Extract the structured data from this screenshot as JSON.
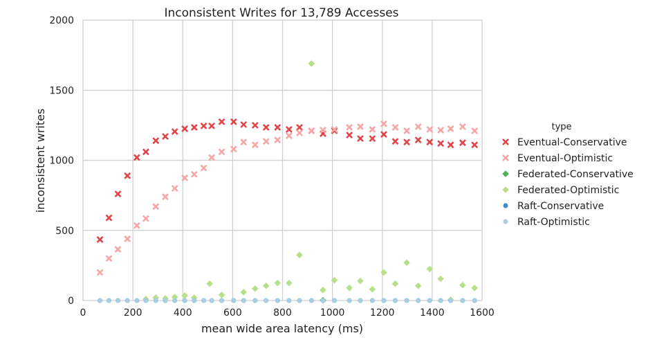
{
  "chart_data": {
    "type": "scatter",
    "title": "Inconsistent Writes for 13,789 Accesses",
    "xlabel": "mean wide area latency (ms)",
    "ylabel": "inconsistent writes",
    "xlim": [
      0,
      1600
    ],
    "ylim": [
      0,
      2000
    ],
    "xticks": [
      "0",
      "200",
      "400",
      "600",
      "800",
      "1000",
      "1200",
      "1400",
      "1600"
    ],
    "yticks": [
      "0",
      "500",
      "1000",
      "1500",
      "2000"
    ],
    "grid": true,
    "legend_title": "type",
    "legend_position": "right",
    "series": [
      {
        "name": "Eventual-Conservative",
        "color": "#e0454a",
        "marker": "x",
        "x": [
          68,
          104,
          140,
          178,
          216,
          252,
          292,
          330,
          368,
          408,
          446,
          484,
          516,
          556,
          604,
          644,
          690,
          734,
          780,
          826,
          868,
          916,
          962,
          1008,
          1068,
          1112,
          1160,
          1206,
          1252,
          1298,
          1344,
          1390,
          1434,
          1474,
          1522,
          1570
        ],
        "y": [
          435,
          590,
          760,
          890,
          1020,
          1060,
          1140,
          1170,
          1205,
          1225,
          1235,
          1245,
          1245,
          1275,
          1275,
          1255,
          1250,
          1235,
          1235,
          1220,
          1235,
          1210,
          1190,
          1210,
          1180,
          1155,
          1155,
          1185,
          1135,
          1130,
          1145,
          1130,
          1120,
          1110,
          1125,
          1110
        ]
      },
      {
        "name": "Eventual-Optimistic",
        "color": "#f7a6a6",
        "marker": "x",
        "x": [
          68,
          104,
          140,
          178,
          216,
          252,
          292,
          330,
          368,
          408,
          446,
          484,
          516,
          556,
          604,
          644,
          690,
          734,
          780,
          826,
          868,
          916,
          962,
          1008,
          1068,
          1112,
          1160,
          1206,
          1252,
          1298,
          1344,
          1390,
          1434,
          1474,
          1522,
          1570
        ],
        "y": [
          200,
          300,
          365,
          440,
          535,
          585,
          670,
          740,
          800,
          875,
          900,
          945,
          1020,
          1060,
          1080,
          1130,
          1110,
          1135,
          1145,
          1175,
          1195,
          1210,
          1215,
          1220,
          1235,
          1240,
          1220,
          1260,
          1235,
          1210,
          1240,
          1220,
          1215,
          1225,
          1240,
          1210
        ]
      },
      {
        "name": "Federated-Conservative",
        "color": "#4db356",
        "marker": "diamond",
        "x": [
          962
        ],
        "y": [
          2
        ]
      },
      {
        "name": "Federated-Optimistic",
        "color": "#b7e08a",
        "marker": "diamond",
        "x": [
          252,
          292,
          330,
          368,
          408,
          446,
          508,
          556,
          644,
          690,
          734,
          780,
          826,
          868,
          916,
          962,
          1008,
          1068,
          1112,
          1160,
          1206,
          1252,
          1298,
          1344,
          1390,
          1434,
          1474,
          1522,
          1570
        ],
        "y": [
          10,
          20,
          15,
          25,
          35,
          20,
          120,
          40,
          60,
          85,
          105,
          125,
          125,
          325,
          1690,
          75,
          145,
          90,
          140,
          80,
          200,
          120,
          270,
          105,
          225,
          155,
          5,
          110,
          90
        ]
      },
      {
        "name": "Raft-Conservative",
        "color": "#3b8fc6",
        "marker": "circle",
        "x": [
          68,
          104,
          140,
          178,
          216,
          252,
          292,
          330,
          368,
          408,
          446,
          484,
          516,
          556,
          604,
          644,
          690,
          734,
          780,
          826,
          868,
          916,
          962,
          1008,
          1068,
          1112,
          1160,
          1206,
          1252,
          1298,
          1344,
          1390,
          1434,
          1474,
          1522,
          1570
        ],
        "y": [
          0,
          0,
          0,
          0,
          0,
          0,
          0,
          0,
          0,
          0,
          0,
          0,
          0,
          0,
          0,
          0,
          0,
          0,
          0,
          0,
          0,
          0,
          0,
          0,
          0,
          0,
          0,
          0,
          0,
          0,
          0,
          0,
          0,
          0,
          0,
          0
        ]
      },
      {
        "name": "Raft-Optimistic",
        "color": "#a7cee3",
        "marker": "circle",
        "x": [
          68,
          104,
          140,
          178,
          216,
          252,
          292,
          330,
          368,
          408,
          446,
          484,
          516,
          556,
          604,
          644,
          690,
          734,
          780,
          826,
          868,
          916,
          962,
          1008,
          1068,
          1112,
          1160,
          1206,
          1252,
          1298,
          1344,
          1390,
          1434,
          1474,
          1522,
          1570
        ],
        "y": [
          0,
          0,
          0,
          0,
          0,
          0,
          0,
          0,
          0,
          0,
          0,
          0,
          0,
          0,
          0,
          0,
          0,
          0,
          0,
          0,
          0,
          0,
          0,
          0,
          0,
          0,
          0,
          0,
          0,
          0,
          0,
          0,
          0,
          0,
          0,
          0
        ]
      }
    ]
  }
}
